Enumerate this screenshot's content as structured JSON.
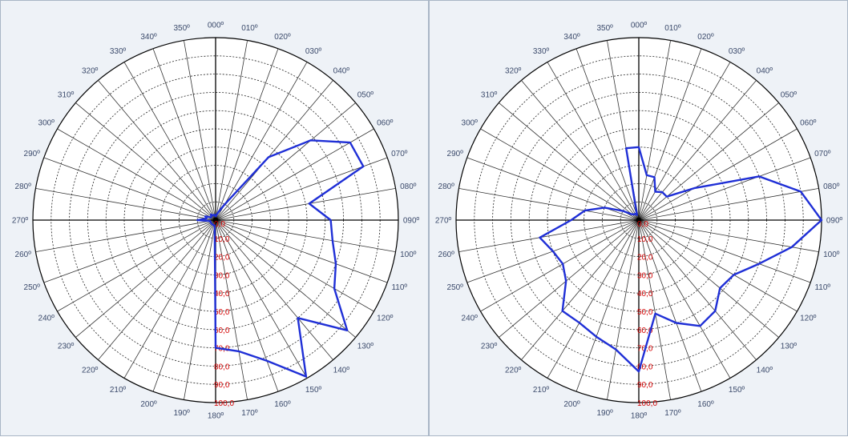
{
  "chart_data": [
    {
      "type": "polar-line",
      "title": "",
      "angle_labels": [
        "000º",
        "010º",
        "020º",
        "030º",
        "040º",
        "050º",
        "060º",
        "070º",
        "080º",
        "090º",
        "100º",
        "110º",
        "120º",
        "130º",
        "140º",
        "150º",
        "160º",
        "170º",
        "180º",
        "190º",
        "200º",
        "210º",
        "220º",
        "230º",
        "240º",
        "250º",
        "260º",
        "270º",
        "280º",
        "290º",
        "300º",
        "310º",
        "320º",
        "330º",
        "340º",
        "350º"
      ],
      "radial_labels": [
        "0,0",
        "10,0",
        "20,0",
        "30,0",
        "40,0",
        "50,0",
        "60,0",
        "70,0",
        "80,0",
        "90,0",
        "100,0"
      ],
      "r_range": [
        0,
        100
      ],
      "grid": true,
      "series_color": "#1f2fd6",
      "series": [
        {
          "angles": [
            0,
            10,
            20,
            30,
            40,
            50,
            60,
            70,
            80,
            90,
            100,
            110,
            120,
            130,
            140,
            150,
            160,
            170,
            180,
            190,
            200,
            210,
            220,
            230,
            240,
            250,
            260,
            270,
            280,
            290,
            300,
            310,
            320,
            330,
            340,
            350
          ],
          "values": [
            2,
            3,
            5,
            10,
            45,
            68,
            85,
            86,
            52,
            63,
            65,
            70,
            75,
            94,
            70,
            99,
            82,
            73,
            70,
            3,
            3,
            3,
            3,
            3,
            3,
            3,
            3,
            10,
            5,
            6,
            3,
            3,
            4,
            3,
            3,
            3
          ]
        }
      ]
    },
    {
      "type": "polar-line",
      "title": "",
      "angle_labels": [
        "000º",
        "010º",
        "020º",
        "030º",
        "040º",
        "050º",
        "060º",
        "070º",
        "080º",
        "090º",
        "100º",
        "110º",
        "120º",
        "130º",
        "140º",
        "150º",
        "160º",
        "170º",
        "180º",
        "190º",
        "200º",
        "210º",
        "220º",
        "230º",
        "240º",
        "250º",
        "260º",
        "270º",
        "280º",
        "290º",
        "300º",
        "310º",
        "320º",
        "330º",
        "340º",
        "350º"
      ],
      "radial_labels": [
        "0,0",
        "10,0",
        "20,0",
        "30,0",
        "40,0",
        "50,0",
        "60,0",
        "70,0",
        "80,0",
        "90,0",
        "100,0"
      ],
      "r_range": [
        0,
        100
      ],
      "grid": true,
      "series_color": "#1f2fd6",
      "series": [
        {
          "angles": [
            0,
            10,
            20,
            30,
            40,
            50,
            60,
            70,
            80,
            90,
            100,
            110,
            120,
            130,
            140,
            150,
            160,
            170,
            180,
            190,
            200,
            210,
            220,
            230,
            240,
            250,
            260,
            270,
            280,
            290,
            300,
            310,
            320,
            330,
            340,
            350
          ],
          "values": [
            40,
            25,
            25,
            18,
            20,
            20,
            35,
            70,
            90,
            100,
            85,
            70,
            60,
            58,
            65,
            67,
            60,
            52,
            83,
            72,
            68,
            65,
            65,
            52,
            48,
            50,
            55,
            37,
            30,
            20,
            10,
            5,
            4,
            4,
            3,
            40
          ]
        }
      ]
    }
  ]
}
